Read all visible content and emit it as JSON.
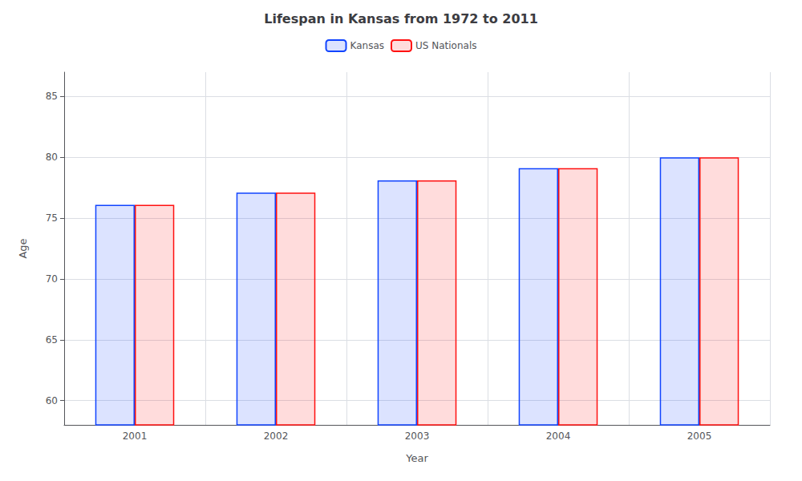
{
  "chart_data": {
    "type": "bar",
    "title": "Lifespan in Kansas from 1972 to 2011",
    "xlabel": "Year",
    "ylabel": "Age",
    "categories": [
      "2001",
      "2002",
      "2003",
      "2004",
      "2005"
    ],
    "series": [
      {
        "name": "Kansas",
        "color": "#1144ff",
        "values": [
          76.1,
          77.1,
          78.1,
          79.1,
          80.0
        ]
      },
      {
        "name": "US Nationals",
        "color": "#ff1111",
        "values": [
          76.1,
          77.1,
          78.1,
          79.1,
          80.0
        ]
      }
    ],
    "ylim": [
      58,
      87
    ],
    "yticks": [
      60,
      65,
      70,
      75,
      80,
      85
    ],
    "grid": true,
    "legend": "upper center"
  }
}
